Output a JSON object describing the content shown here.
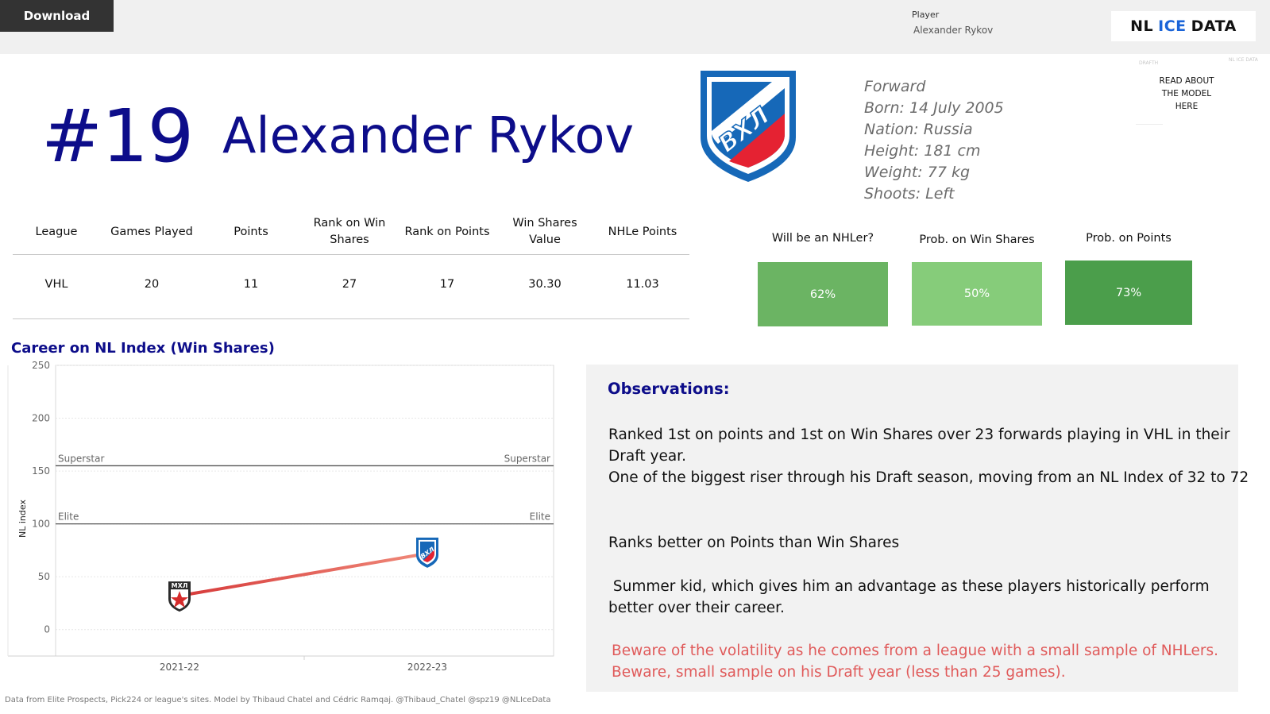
{
  "toolbar": {
    "download_label": "Download"
  },
  "filter": {
    "label": "Player",
    "value": "Alexander Rykov"
  },
  "brand": {
    "part1": "NL",
    "part2": "ICE",
    "part3": "DATA"
  },
  "header": {
    "jersey": "#19",
    "name": "Alexander Rykov",
    "logo_text": "ВХЛ"
  },
  "bio": {
    "position": "Forward",
    "born": "Born: 14 July 2005",
    "nation": "Nation: Russia",
    "height": "Height: 181 cm",
    "weight": "Weight: 77 kg",
    "shoots": "Shoots: Left"
  },
  "model_link": {
    "line1": "READ ABOUT",
    "line2": "THE MODEL",
    "line3": "HERE",
    "ghost_left": "DRAFTH",
    "ghost_right": "NL ICE DATA"
  },
  "stats_table": {
    "headers": [
      "League",
      "Games Played",
      "Points",
      "Rank on Win Shares",
      "Rank on Points",
      "Win Shares Value",
      "NHLe Points"
    ],
    "row": [
      "VHL",
      "20",
      "11",
      "27",
      "17",
      "30.30",
      "11.03"
    ]
  },
  "probabilities": [
    {
      "title": "Will be an NHLer?",
      "value": "62%",
      "fraction": 0.62,
      "color": "#6bb463"
    },
    {
      "title": "Prob. on Win Shares",
      "value": "50%",
      "fraction": 0.5,
      "color": "#86cc7a"
    },
    {
      "title": "Prob. on Points",
      "value": "73%",
      "fraction": 0.73,
      "color": "#4b9e4b"
    }
  ],
  "chart_title": "Career on NL Index (Win Shares)",
  "chart_data": {
    "type": "line",
    "ylabel": "NL index",
    "ylim": [
      -25,
      250
    ],
    "yticks": [
      "250",
      "200",
      "150",
      "100",
      "50",
      "0"
    ],
    "ytick_values": [
      250,
      200,
      150,
      100,
      50,
      0
    ],
    "categories": [
      "2021-22",
      "2022-23"
    ],
    "values": [
      32,
      72
    ],
    "points": [
      {
        "season": "2021-22",
        "value": 32,
        "logo": "mhl-logo",
        "logo_text": "МХЛ"
      },
      {
        "season": "2022-23",
        "value": 72,
        "logo": "vhl-logo",
        "logo_text": "ВХЛ"
      }
    ],
    "reference_lines": [
      {
        "label": "Superstar",
        "value": 155
      },
      {
        "label": "Elite",
        "value": 100
      }
    ],
    "line_colors": [
      "#d63a3a",
      "#f08a7a"
    ],
    "grid": true
  },
  "observations": {
    "heading": "Observations:",
    "p1a": "Ranked 1st on points and 1st on Win Shares over 23 forwards playing in VHL in their",
    "p1b": "Draft year.",
    "p2": "One of the biggest riser through his Draft season, moving from an NL Index of 32 to 72",
    "p3": "Ranks better on Points than Win Shares",
    "p4a": " Summer kid, which gives him an advantage as these players historically perform",
    "p4b": "better over their career.",
    "p5": "Beware of the volatility as he comes from a league with a small sample of NHLers.",
    "p6": "Beware, small sample on his Draft year (less than 25 games).",
    "warning_color": "#e05a5a"
  },
  "footer": "Data from Elite Prospects, Pick224 or league's sites. Model by Thibaud Chatel and Cédric Ramqaj. @Thibaud_Chatel @spz19 @NLIceData"
}
